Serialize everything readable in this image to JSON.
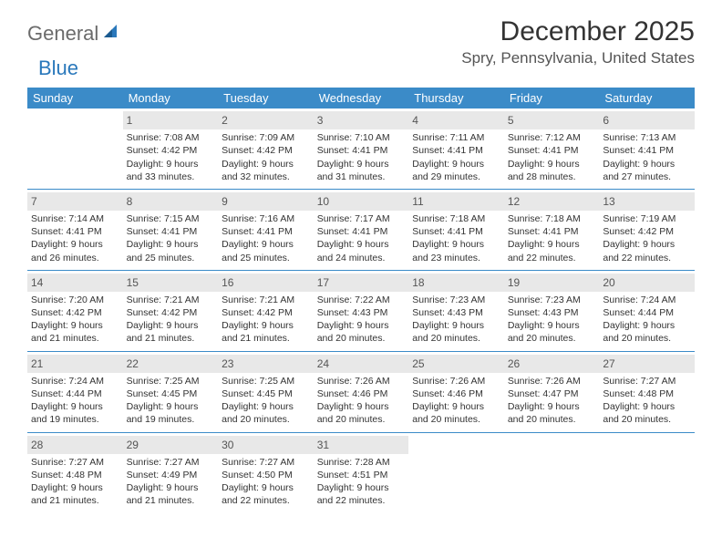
{
  "logo": {
    "general": "General",
    "blue": "Blue"
  },
  "title": "December 2025",
  "location": "Spry, Pennsylvania, United States",
  "colors": {
    "header_bg": "#3b8bc8",
    "header_fg": "#ffffff",
    "daynum_bg": "#e8e8e8",
    "daynum_fg": "#555555",
    "border": "#3b8bc8",
    "page_bg": "#ffffff",
    "text": "#333333",
    "logo_gray": "#6b6b6b",
    "logo_blue": "#2a78bb"
  },
  "typography": {
    "title_fontsize": 30,
    "location_fontsize": 17,
    "dayheader_fontsize": 13,
    "cell_fontsize": 10.5,
    "daynum_fontsize": 12,
    "logo_fontsize": 22
  },
  "day_headers": [
    "Sunday",
    "Monday",
    "Tuesday",
    "Wednesday",
    "Thursday",
    "Friday",
    "Saturday"
  ],
  "weeks": [
    [
      {
        "day": null
      },
      {
        "day": 1,
        "sunrise": "7:08 AM",
        "sunset": "4:42 PM",
        "daylight": "9 hours and 33 minutes."
      },
      {
        "day": 2,
        "sunrise": "7:09 AM",
        "sunset": "4:42 PM",
        "daylight": "9 hours and 32 minutes."
      },
      {
        "day": 3,
        "sunrise": "7:10 AM",
        "sunset": "4:41 PM",
        "daylight": "9 hours and 31 minutes."
      },
      {
        "day": 4,
        "sunrise": "7:11 AM",
        "sunset": "4:41 PM",
        "daylight": "9 hours and 29 minutes."
      },
      {
        "day": 5,
        "sunrise": "7:12 AM",
        "sunset": "4:41 PM",
        "daylight": "9 hours and 28 minutes."
      },
      {
        "day": 6,
        "sunrise": "7:13 AM",
        "sunset": "4:41 PM",
        "daylight": "9 hours and 27 minutes."
      }
    ],
    [
      {
        "day": 7,
        "sunrise": "7:14 AM",
        "sunset": "4:41 PM",
        "daylight": "9 hours and 26 minutes."
      },
      {
        "day": 8,
        "sunrise": "7:15 AM",
        "sunset": "4:41 PM",
        "daylight": "9 hours and 25 minutes."
      },
      {
        "day": 9,
        "sunrise": "7:16 AM",
        "sunset": "4:41 PM",
        "daylight": "9 hours and 25 minutes."
      },
      {
        "day": 10,
        "sunrise": "7:17 AM",
        "sunset": "4:41 PM",
        "daylight": "9 hours and 24 minutes."
      },
      {
        "day": 11,
        "sunrise": "7:18 AM",
        "sunset": "4:41 PM",
        "daylight": "9 hours and 23 minutes."
      },
      {
        "day": 12,
        "sunrise": "7:18 AM",
        "sunset": "4:41 PM",
        "daylight": "9 hours and 22 minutes."
      },
      {
        "day": 13,
        "sunrise": "7:19 AM",
        "sunset": "4:42 PM",
        "daylight": "9 hours and 22 minutes."
      }
    ],
    [
      {
        "day": 14,
        "sunrise": "7:20 AM",
        "sunset": "4:42 PM",
        "daylight": "9 hours and 21 minutes."
      },
      {
        "day": 15,
        "sunrise": "7:21 AM",
        "sunset": "4:42 PM",
        "daylight": "9 hours and 21 minutes."
      },
      {
        "day": 16,
        "sunrise": "7:21 AM",
        "sunset": "4:42 PM",
        "daylight": "9 hours and 21 minutes."
      },
      {
        "day": 17,
        "sunrise": "7:22 AM",
        "sunset": "4:43 PM",
        "daylight": "9 hours and 20 minutes."
      },
      {
        "day": 18,
        "sunrise": "7:23 AM",
        "sunset": "4:43 PM",
        "daylight": "9 hours and 20 minutes."
      },
      {
        "day": 19,
        "sunrise": "7:23 AM",
        "sunset": "4:43 PM",
        "daylight": "9 hours and 20 minutes."
      },
      {
        "day": 20,
        "sunrise": "7:24 AM",
        "sunset": "4:44 PM",
        "daylight": "9 hours and 20 minutes."
      }
    ],
    [
      {
        "day": 21,
        "sunrise": "7:24 AM",
        "sunset": "4:44 PM",
        "daylight": "9 hours and 19 minutes."
      },
      {
        "day": 22,
        "sunrise": "7:25 AM",
        "sunset": "4:45 PM",
        "daylight": "9 hours and 19 minutes."
      },
      {
        "day": 23,
        "sunrise": "7:25 AM",
        "sunset": "4:45 PM",
        "daylight": "9 hours and 20 minutes."
      },
      {
        "day": 24,
        "sunrise": "7:26 AM",
        "sunset": "4:46 PM",
        "daylight": "9 hours and 20 minutes."
      },
      {
        "day": 25,
        "sunrise": "7:26 AM",
        "sunset": "4:46 PM",
        "daylight": "9 hours and 20 minutes."
      },
      {
        "day": 26,
        "sunrise": "7:26 AM",
        "sunset": "4:47 PM",
        "daylight": "9 hours and 20 minutes."
      },
      {
        "day": 27,
        "sunrise": "7:27 AM",
        "sunset": "4:48 PM",
        "daylight": "9 hours and 20 minutes."
      }
    ],
    [
      {
        "day": 28,
        "sunrise": "7:27 AM",
        "sunset": "4:48 PM",
        "daylight": "9 hours and 21 minutes."
      },
      {
        "day": 29,
        "sunrise": "7:27 AM",
        "sunset": "4:49 PM",
        "daylight": "9 hours and 21 minutes."
      },
      {
        "day": 30,
        "sunrise": "7:27 AM",
        "sunset": "4:50 PM",
        "daylight": "9 hours and 22 minutes."
      },
      {
        "day": 31,
        "sunrise": "7:28 AM",
        "sunset": "4:51 PM",
        "daylight": "9 hours and 22 minutes."
      },
      {
        "day": null
      },
      {
        "day": null
      },
      {
        "day": null
      }
    ]
  ],
  "labels": {
    "sunrise": "Sunrise:",
    "sunset": "Sunset:",
    "daylight": "Daylight:"
  }
}
